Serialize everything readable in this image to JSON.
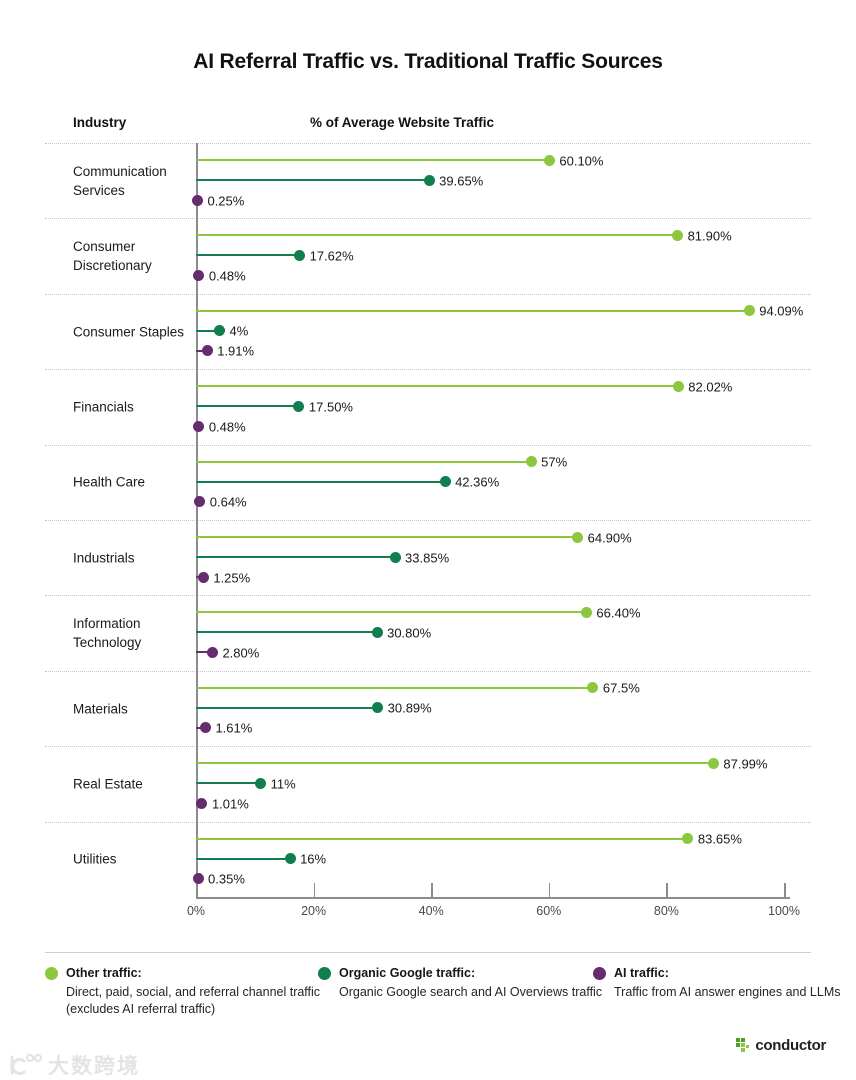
{
  "title": "AI Referral Traffic vs. Traditional Traffic Sources",
  "headers": {
    "industry": "Industry",
    "traffic": "% of Average Website Traffic"
  },
  "chart_data": {
    "type": "bar",
    "subtype": "horizontal-lollipop",
    "categories": [
      "Communication Services",
      "Consumer Discretionary",
      "Consumer Staples",
      "Financials",
      "Health Care",
      "Industrials",
      "Information Technology",
      "Materials",
      "Real Estate",
      "Utilities"
    ],
    "series": [
      {
        "name": "Other traffic",
        "color": "#8DC63F",
        "values": [
          60.1,
          81.9,
          94.09,
          82.02,
          57,
          64.9,
          66.4,
          67.5,
          87.99,
          83.65
        ],
        "labels": [
          "60.10%",
          "81.90%",
          "94.09%",
          "82.02%",
          "57%",
          "64.90%",
          "66.40%",
          "67.5%",
          "87.99%",
          "83.65%"
        ]
      },
      {
        "name": "Organic Google traffic",
        "color": "#117F4D",
        "values": [
          39.65,
          17.62,
          4,
          17.5,
          42.36,
          33.85,
          30.8,
          30.89,
          11,
          16
        ],
        "labels": [
          "39.65%",
          "17.62%",
          "4%",
          "17.50%",
          "42.36%",
          "33.85%",
          "30.80%",
          "30.89%",
          "11%",
          "16%"
        ]
      },
      {
        "name": "AI traffic",
        "color": "#662D6E",
        "values": [
          0.25,
          0.48,
          1.91,
          0.48,
          0.64,
          1.25,
          2.8,
          1.61,
          1.01,
          0.35
        ],
        "labels": [
          "0.25%",
          "0.48%",
          "1.91%",
          "0.48%",
          "0.64%",
          "1.25%",
          "2.80%",
          "1.61%",
          "1.01%",
          "0.35%"
        ]
      }
    ],
    "x_ticks": [
      "0%",
      "20%",
      "40%",
      "60%",
      "80%",
      "100%"
    ],
    "x_tick_values": [
      0,
      20,
      40,
      60,
      80,
      100
    ],
    "xlim": [
      0,
      100
    ],
    "grid": "dotted-row-separators",
    "legend_position": "bottom"
  },
  "legend": [
    {
      "name": "Other traffic:",
      "color": "#8DC63F",
      "desc_line1": "Direct, paid, social, and referral channel traffic",
      "desc_line2": "(excludes AI referral traffic)"
    },
    {
      "name": "Organic Google traffic:",
      "color": "#117F4D",
      "desc_line1": "Organic Google search and AI Overviews traffic",
      "desc_line2": ""
    },
    {
      "name": "AI traffic:",
      "color": "#662D6E",
      "desc_line1": "Traffic from AI answer engines and LLMs",
      "desc_line2": ""
    }
  ],
  "branding": {
    "logo_text": "conductor",
    "logo_dark_green": "#4F9E1F",
    "logo_light_green": "#8DC63F"
  },
  "watermark": {
    "text": "大数跨境"
  }
}
